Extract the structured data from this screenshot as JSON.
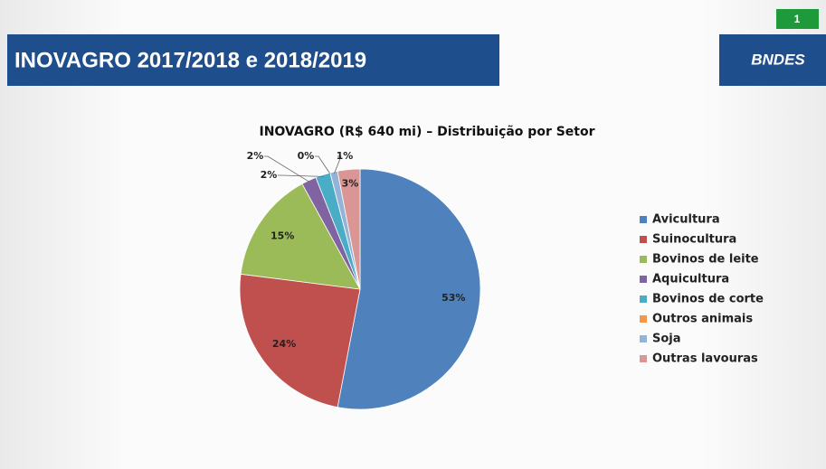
{
  "header": {
    "title": "INOVAGRO 2017/2018 e 2018/2019",
    "page_number": "1",
    "logo": "BNDES"
  },
  "chart_data": {
    "type": "pie",
    "title": "INOVAGRO (R$ 640 mi) – Distribuição por Setor",
    "categories": [
      "Avicultura",
      "Suinocultura",
      "Bovinos de leite",
      "Aquicultura",
      "Bovinos de corte",
      "Outros animais",
      "Soja",
      "Outras lavouras"
    ],
    "values": [
      53,
      24,
      15,
      2,
      2,
      0,
      1,
      3
    ],
    "value_labels": [
      "53%",
      "24%",
      "15%",
      "2%",
      "2%",
      "0%",
      "1%",
      "3%"
    ],
    "colors": [
      "#4f81bd",
      "#c0504d",
      "#9bbb59",
      "#8064a2",
      "#4bacc6",
      "#f79646",
      "#95b3d7",
      "#d99694"
    ],
    "legend": "right"
  }
}
